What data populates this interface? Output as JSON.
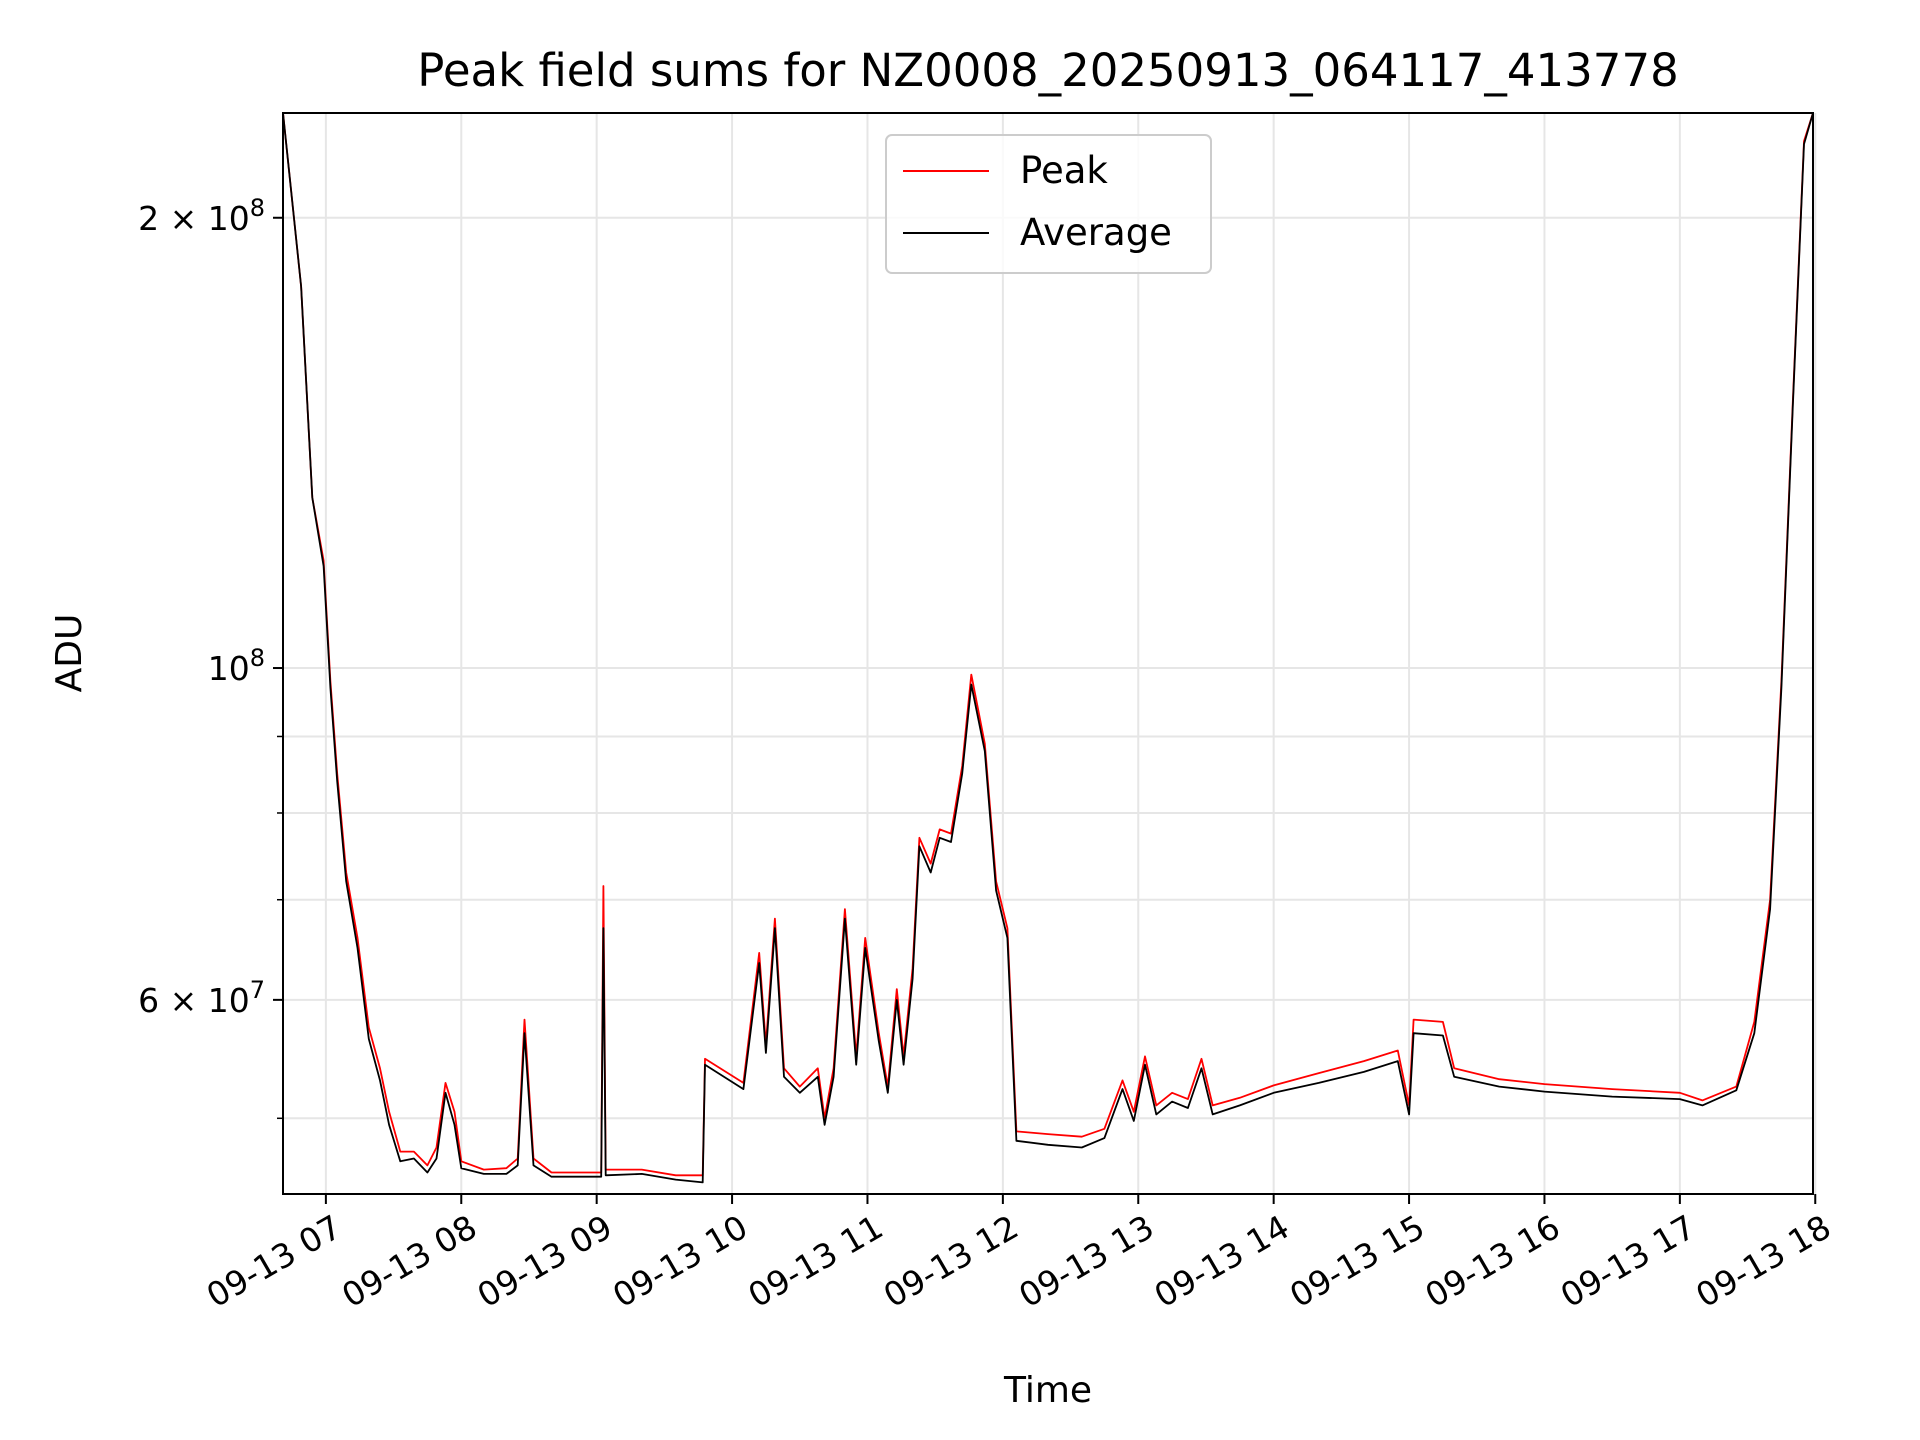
{
  "chart_data": {
    "type": "line",
    "title": "Peak field sums for NZ0008_20250913_064117_413778",
    "xlabel": "Time",
    "ylabel": "ADU",
    "y_scale": "log",
    "ylim": [
      44500000,
      235000000
    ],
    "xlim": [
      "09-13 06:41",
      "09-13 17:59"
    ],
    "grid": true,
    "legend_position": "top-center",
    "x_ticks": [
      "09-13 07",
      "09-13 08",
      "09-13 09",
      "09-13 10",
      "09-13 11",
      "09-13 12",
      "09-13 13",
      "09-13 14",
      "09-13 15",
      "09-13 16",
      "09-13 17",
      "09-13 18"
    ],
    "x_tick_times": [
      "09-13 07:00",
      "09-13 08:00",
      "09-13 09:00",
      "09-13 10:00",
      "09-13 11:00",
      "09-13 12:00",
      "09-13 13:00",
      "09-13 14:00",
      "09-13 15:00",
      "09-13 16:00",
      "09-13 17:00",
      "09-13 18:00"
    ],
    "y_ticks": [
      {
        "value": 200000000,
        "mantissa": "2",
        "exp": "8"
      },
      {
        "value": 100000000,
        "mantissa": "",
        "exp": "8"
      },
      {
        "value": 60000000,
        "mantissa": "6",
        "exp": "7"
      }
    ],
    "y_minor_ticks": [
      50000000,
      70000000,
      80000000,
      90000000,
      300000000
    ],
    "series": [
      {
        "name": "Peak",
        "color": "#ff0000",
        "points": [
          [
            "09-13 06:41",
            235000000
          ],
          [
            "09-13 06:49",
            180000000
          ],
          [
            "09-13 06:54",
            130000000
          ],
          [
            "09-13 06:59",
            118000000
          ],
          [
            "09-13 07:02",
            98000000
          ],
          [
            "09-13 07:05",
            85000000
          ],
          [
            "09-13 07:09",
            73000000
          ],
          [
            "09-13 07:14",
            66000000
          ],
          [
            "09-13 07:19",
            57500000
          ],
          [
            "09-13 07:24",
            54000000
          ],
          [
            "09-13 07:28",
            50500000
          ],
          [
            "09-13 07:33",
            47500000
          ],
          [
            "09-13 07:39",
            47500000
          ],
          [
            "09-13 07:45",
            46500000
          ],
          [
            "09-13 07:49",
            47800000
          ],
          [
            "09-13 07:53",
            52800000
          ],
          [
            "09-13 07:57",
            50500000
          ],
          [
            "09-13 08:00",
            46800000
          ],
          [
            "09-13 08:10",
            46200000
          ],
          [
            "09-13 08:20",
            46300000
          ],
          [
            "09-13 08:25",
            47000000
          ],
          [
            "09-13 08:28",
            58200000
          ],
          [
            "09-13 08:32",
            47000000
          ],
          [
            "09-13 08:40",
            46000000
          ],
          [
            "09-13 08:55",
            46000000
          ],
          [
            "09-13 09:02",
            46000000
          ],
          [
            "09-13 09:03",
            71500000
          ],
          [
            "09-13 09:04",
            46200000
          ],
          [
            "09-13 09:20",
            46200000
          ],
          [
            "09-13 09:35",
            45800000
          ],
          [
            "09-13 09:47",
            45800000
          ],
          [
            "09-13 09:48",
            54800000
          ],
          [
            "09-13 10:05",
            52800000
          ],
          [
            "09-13 10:12",
            64500000
          ],
          [
            "09-13 10:15",
            56000000
          ],
          [
            "09-13 10:19",
            68000000
          ],
          [
            "09-13 10:23",
            54000000
          ],
          [
            "09-13 10:30",
            52500000
          ],
          [
            "09-13 10:38",
            54000000
          ],
          [
            "09-13 10:41",
            50000000
          ],
          [
            "09-13 10:45",
            54000000
          ],
          [
            "09-13 10:50",
            69000000
          ],
          [
            "09-13 10:55",
            55000000
          ],
          [
            "09-13 10:59",
            66000000
          ],
          [
            "09-13 11:05",
            57000000
          ],
          [
            "09-13 11:09",
            52500000
          ],
          [
            "09-13 11:13",
            61000000
          ],
          [
            "09-13 11:16",
            55000000
          ],
          [
            "09-13 11:20",
            63000000
          ],
          [
            "09-13 11:23",
            77000000
          ],
          [
            "09-13 11:28",
            74000000
          ],
          [
            "09-13 11:32",
            78000000
          ],
          [
            "09-13 11:37",
            77500000
          ],
          [
            "09-13 11:42",
            86000000
          ],
          [
            "09-13 11:46",
            99000000
          ],
          [
            "09-13 11:52",
            89000000
          ],
          [
            "09-13 11:57",
            72000000
          ],
          [
            "09-13 12:02",
            67000000
          ],
          [
            "09-13 12:06",
            49000000
          ],
          [
            "09-13 12:20",
            48800000
          ],
          [
            "09-13 12:35",
            48600000
          ],
          [
            "09-13 12:45",
            49200000
          ],
          [
            "09-13 12:53",
            53000000
          ],
          [
            "09-13 12:58",
            50500000
          ],
          [
            "09-13 13:03",
            55000000
          ],
          [
            "09-13 13:08",
            51000000
          ],
          [
            "09-13 13:15",
            52000000
          ],
          [
            "09-13 13:22",
            51500000
          ],
          [
            "09-13 13:28",
            54800000
          ],
          [
            "09-13 13:33",
            51000000
          ],
          [
            "09-13 13:45",
            51600000
          ],
          [
            "09-13 14:00",
            52600000
          ],
          [
            "09-13 14:20",
            53600000
          ],
          [
            "09-13 14:40",
            54600000
          ],
          [
            "09-13 14:55",
            55500000
          ],
          [
            "09-13 15:00",
            51000000
          ],
          [
            "09-13 15:02",
            58200000
          ],
          [
            "09-13 15:15",
            58000000
          ],
          [
            "09-13 15:20",
            54000000
          ],
          [
            "09-13 15:40",
            53100000
          ],
          [
            "09-13 16:00",
            52700000
          ],
          [
            "09-13 16:30",
            52300000
          ],
          [
            "09-13 17:00",
            52000000
          ],
          [
            "09-13 17:10",
            51400000
          ],
          [
            "09-13 17:25",
            52500000
          ],
          [
            "09-13 17:33",
            58000000
          ],
          [
            "09-13 17:40",
            70000000
          ],
          [
            "09-13 17:45",
            98000000
          ],
          [
            "09-13 17:50",
            150000000
          ],
          [
            "09-13 17:55",
            225000000
          ],
          [
            "09-13 17:59",
            235000000
          ]
        ]
      },
      {
        "name": "Average",
        "color": "#000000",
        "points": [
          [
            "09-13 06:41",
            235000000
          ],
          [
            "09-13 06:49",
            180000000
          ],
          [
            "09-13 06:54",
            130000000
          ],
          [
            "09-13 06:59",
            117000000
          ],
          [
            "09-13 07:02",
            97000000
          ],
          [
            "09-13 07:05",
            84000000
          ],
          [
            "09-13 07:09",
            72000000
          ],
          [
            "09-13 07:14",
            65000000
          ],
          [
            "09-13 07:19",
            56500000
          ],
          [
            "09-13 07:24",
            53000000
          ],
          [
            "09-13 07:28",
            49500000
          ],
          [
            "09-13 07:33",
            46800000
          ],
          [
            "09-13 07:39",
            47000000
          ],
          [
            "09-13 07:45",
            46000000
          ],
          [
            "09-13 07:49",
            47000000
          ],
          [
            "09-13 07:53",
            52000000
          ],
          [
            "09-13 07:57",
            49500000
          ],
          [
            "09-13 08:00",
            46300000
          ],
          [
            "09-13 08:10",
            45900000
          ],
          [
            "09-13 08:20",
            45900000
          ],
          [
            "09-13 08:25",
            46500000
          ],
          [
            "09-13 08:28",
            57000000
          ],
          [
            "09-13 08:32",
            46500000
          ],
          [
            "09-13 08:40",
            45700000
          ],
          [
            "09-13 08:55",
            45700000
          ],
          [
            "09-13 09:02",
            45700000
          ],
          [
            "09-13 09:03",
            67000000
          ],
          [
            "09-13 09:04",
            45800000
          ],
          [
            "09-13 09:20",
            45900000
          ],
          [
            "09-13 09:35",
            45500000
          ],
          [
            "09-13 09:47",
            45300000
          ],
          [
            "09-13 09:48",
            54300000
          ],
          [
            "09-13 10:05",
            52300000
          ],
          [
            "09-13 10:12",
            63500000
          ],
          [
            "09-13 10:15",
            55300000
          ],
          [
            "09-13 10:19",
            67000000
          ],
          [
            "09-13 10:23",
            53300000
          ],
          [
            "09-13 10:30",
            52000000
          ],
          [
            "09-13 10:38",
            53300000
          ],
          [
            "09-13 10:41",
            49500000
          ],
          [
            "09-13 10:45",
            53300000
          ],
          [
            "09-13 10:50",
            68000000
          ],
          [
            "09-13 10:55",
            54300000
          ],
          [
            "09-13 10:59",
            65000000
          ],
          [
            "09-13 11:05",
            56300000
          ],
          [
            "09-13 11:09",
            52000000
          ],
          [
            "09-13 11:13",
            60000000
          ],
          [
            "09-13 11:16",
            54300000
          ],
          [
            "09-13 11:20",
            62000000
          ],
          [
            "09-13 11:23",
            76000000
          ],
          [
            "09-13 11:28",
            73000000
          ],
          [
            "09-13 11:32",
            77000000
          ],
          [
            "09-13 11:37",
            76500000
          ],
          [
            "09-13 11:42",
            85000000
          ],
          [
            "09-13 11:46",
            97500000
          ],
          [
            "09-13 11:52",
            88000000
          ],
          [
            "09-13 11:57",
            71000000
          ],
          [
            "09-13 12:02",
            66000000
          ],
          [
            "09-13 12:06",
            48300000
          ],
          [
            "09-13 12:20",
            48000000
          ],
          [
            "09-13 12:35",
            47800000
          ],
          [
            "09-13 12:45",
            48500000
          ],
          [
            "09-13 12:53",
            52300000
          ],
          [
            "09-13 12:58",
            49800000
          ],
          [
            "09-13 13:03",
            54300000
          ],
          [
            "09-13 13:08",
            50300000
          ],
          [
            "09-13 13:15",
            51300000
          ],
          [
            "09-13 13:22",
            50800000
          ],
          [
            "09-13 13:28",
            54000000
          ],
          [
            "09-13 13:33",
            50300000
          ],
          [
            "09-13 13:45",
            51000000
          ],
          [
            "09-13 14:00",
            52000000
          ],
          [
            "09-13 14:20",
            52800000
          ],
          [
            "09-13 14:40",
            53700000
          ],
          [
            "09-13 14:55",
            54600000
          ],
          [
            "09-13 15:00",
            50300000
          ],
          [
            "09-13 15:02",
            57000000
          ],
          [
            "09-13 15:15",
            56800000
          ],
          [
            "09-13 15:20",
            53300000
          ],
          [
            "09-13 15:40",
            52500000
          ],
          [
            "09-13 16:00",
            52100000
          ],
          [
            "09-13 16:30",
            51700000
          ],
          [
            "09-13 17:00",
            51500000
          ],
          [
            "09-13 17:10",
            51000000
          ],
          [
            "09-13 17:25",
            52200000
          ],
          [
            "09-13 17:33",
            57000000
          ],
          [
            "09-13 17:40",
            69000000
          ],
          [
            "09-13 17:45",
            97000000
          ],
          [
            "09-13 17:50",
            149000000
          ],
          [
            "09-13 17:55",
            224000000
          ],
          [
            "09-13 17:59",
            235000000
          ]
        ]
      }
    ]
  }
}
